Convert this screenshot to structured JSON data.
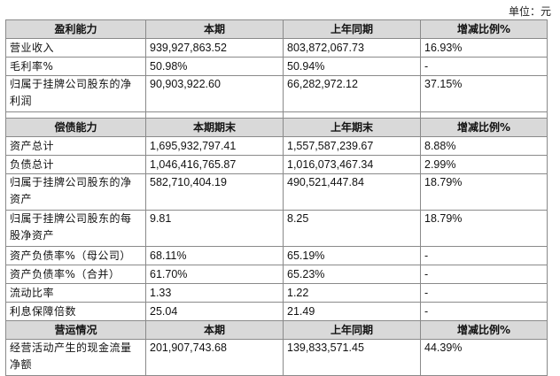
{
  "unit_label": "单位：元",
  "sections": [
    {
      "header": [
        "盈利能力",
        "本期",
        "上年同期",
        "增减比例%"
      ],
      "rows": [
        {
          "label": "营业收入",
          "v1": "939,927,863.52",
          "v2": "803,872,067.73",
          "v3": "16.93%",
          "tall": false
        },
        {
          "label": "毛利率%",
          "v1": "50.98%",
          "v2": "50.94%",
          "v3": "-",
          "tall": false
        },
        {
          "label": "归属于挂牌公司股东的净利润",
          "v1": "90,903,922.60",
          "v2": "66,282,972.12",
          "v3": "37.15%",
          "tall": true
        }
      ]
    },
    {
      "header": [
        "偿债能力",
        "本期期末",
        "上年期末",
        "增减比例%"
      ],
      "rows": [
        {
          "label": "资产总计",
          "v1": "1,695,932,797.41",
          "v2": "1,557,587,239.67",
          "v3": "8.88%",
          "tall": false
        },
        {
          "label": "负债总计",
          "v1": "1,046,416,765.87",
          "v2": "1,016,073,467.34",
          "v3": "2.99%",
          "tall": false
        },
        {
          "label": "归属于挂牌公司股东的净资产",
          "v1": "582,710,404.19",
          "v2": "490,521,447.84",
          "v3": "18.79%",
          "tall": true
        },
        {
          "label": "归属于挂牌公司股东的每股净资产",
          "v1": "9.81",
          "v2": "8.25",
          "v3": "18.79%",
          "tall": true
        },
        {
          "label": "资产负债率%（母公司）",
          "v1": "68.11%",
          "v2": "65.19%",
          "v3": "-",
          "tall": false
        },
        {
          "label": "资产负债率%（合并）",
          "v1": "61.70%",
          "v2": "65.23%",
          "v3": "-",
          "tall": false
        },
        {
          "label": "流动比率",
          "v1": "1.33",
          "v2": "1.22",
          "v3": "-",
          "tall": false
        },
        {
          "label": "利息保障倍数",
          "v1": "25.04",
          "v2": "21.49",
          "v3": "-",
          "tall": false
        }
      ]
    },
    {
      "header": [
        "营运情况",
        "本期",
        "上年同期",
        "增减比例%"
      ],
      "rows": [
        {
          "label": "经营活动产生的现金流量净额",
          "v1": "201,907,743.68",
          "v2": "139,833,571.45",
          "v3": "44.39%",
          "tall": true
        }
      ]
    }
  ]
}
